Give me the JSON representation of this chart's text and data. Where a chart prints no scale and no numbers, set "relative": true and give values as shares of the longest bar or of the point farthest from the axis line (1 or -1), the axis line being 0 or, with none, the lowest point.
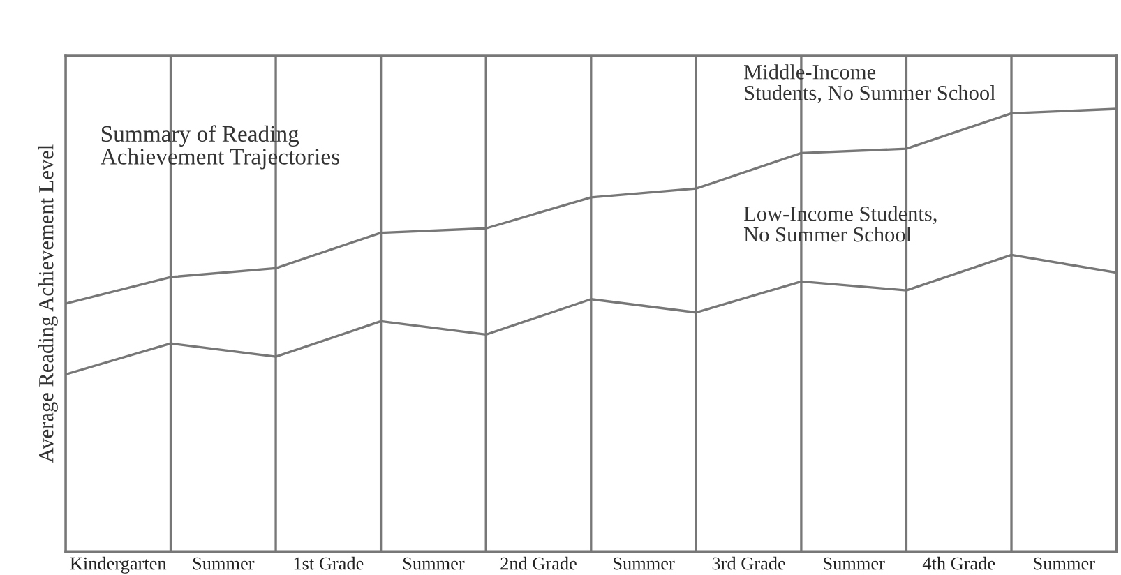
{
  "chart_data": {
    "type": "line",
    "relative": true,
    "title": "Summary of Reading Achievement Trajectories",
    "ylabel": "Average Reading Achievement Level",
    "categories": [
      null,
      null,
      null,
      null,
      null,
      null,
      null,
      null,
      null,
      null,
      null
    ],
    "annotations": [
      "Kindergarten",
      "Summer",
      "1st Grade",
      "Summer",
      "2nd Grade",
      "Summer",
      "3rd Grade",
      "Summer",
      "4th Grade",
      "Summer"
    ],
    "series": [
      {
        "name": "Middle-Income\nStudents, No Summer School",
        "color": "#777777",
        "values": [
          0.56,
          0.62,
          0.64,
          0.72,
          0.73,
          0.8,
          0.82,
          0.9,
          0.91,
          0.99,
          1.0
        ]
      },
      {
        "name": "Low-Income Students,\nNo Summer School",
        "color": "#777777",
        "values": [
          0.4,
          0.47,
          0.44,
          0.52,
          0.49,
          0.57,
          0.54,
          0.61,
          0.59,
          0.67,
          0.63
        ]
      }
    ],
    "grid": "x",
    "legend": false,
    "marker": "none",
    "line_style": "solid"
  }
}
